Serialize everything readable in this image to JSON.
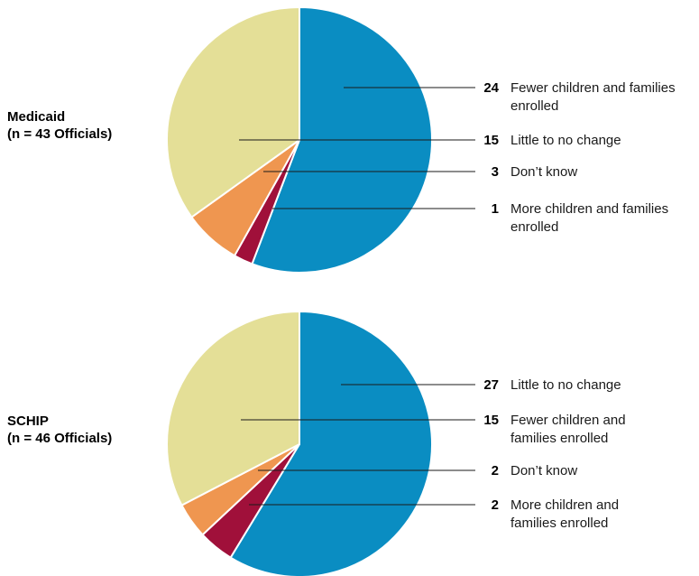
{
  "chart_data": [
    {
      "type": "pie",
      "title": "Medicaid",
      "subtitle": "(n = 43 Officials)",
      "slices": [
        {
          "label": "Fewer children and families enrolled",
          "value": 24,
          "color": "#0a8dc2"
        },
        {
          "label": "More children and families enrolled",
          "value": 1,
          "color": "#a0103a"
        },
        {
          "label": "Don’t know",
          "value": 3,
          "color": "#ef9650"
        },
        {
          "label": "Little to no change",
          "value": 15,
          "color": "#e4df97"
        }
      ],
      "legend_order": [
        {
          "value": "24",
          "lines": [
            "Fewer children and families",
            "enrolled"
          ]
        },
        {
          "value": "15",
          "lines": [
            "Little to no change"
          ]
        },
        {
          "value": "3",
          "lines": [
            "Don’t know"
          ]
        },
        {
          "value": "1",
          "lines": [
            "More children and families",
            "enrolled"
          ]
        }
      ]
    },
    {
      "type": "pie",
      "title": "SCHIP",
      "subtitle": "(n = 46 Officials)",
      "slices": [
        {
          "label": "Little to no change",
          "value": 27,
          "color": "#0a8dc2"
        },
        {
          "label": "More children and families enrolled",
          "value": 2,
          "color": "#a0103a"
        },
        {
          "label": "Don’t know",
          "value": 2,
          "color": "#ef9650"
        },
        {
          "label": "Fewer children and families enrolled",
          "value": 15,
          "color": "#e4df97"
        }
      ],
      "legend_order": [
        {
          "value": "27",
          "lines": [
            "Little to no change"
          ]
        },
        {
          "value": "15",
          "lines": [
            "Fewer children and",
            "families enrolled"
          ]
        },
        {
          "value": "2",
          "lines": [
            "Don’t know"
          ]
        },
        {
          "value": "2",
          "lines": [
            "More children and",
            "families enrolled"
          ]
        }
      ]
    }
  ]
}
